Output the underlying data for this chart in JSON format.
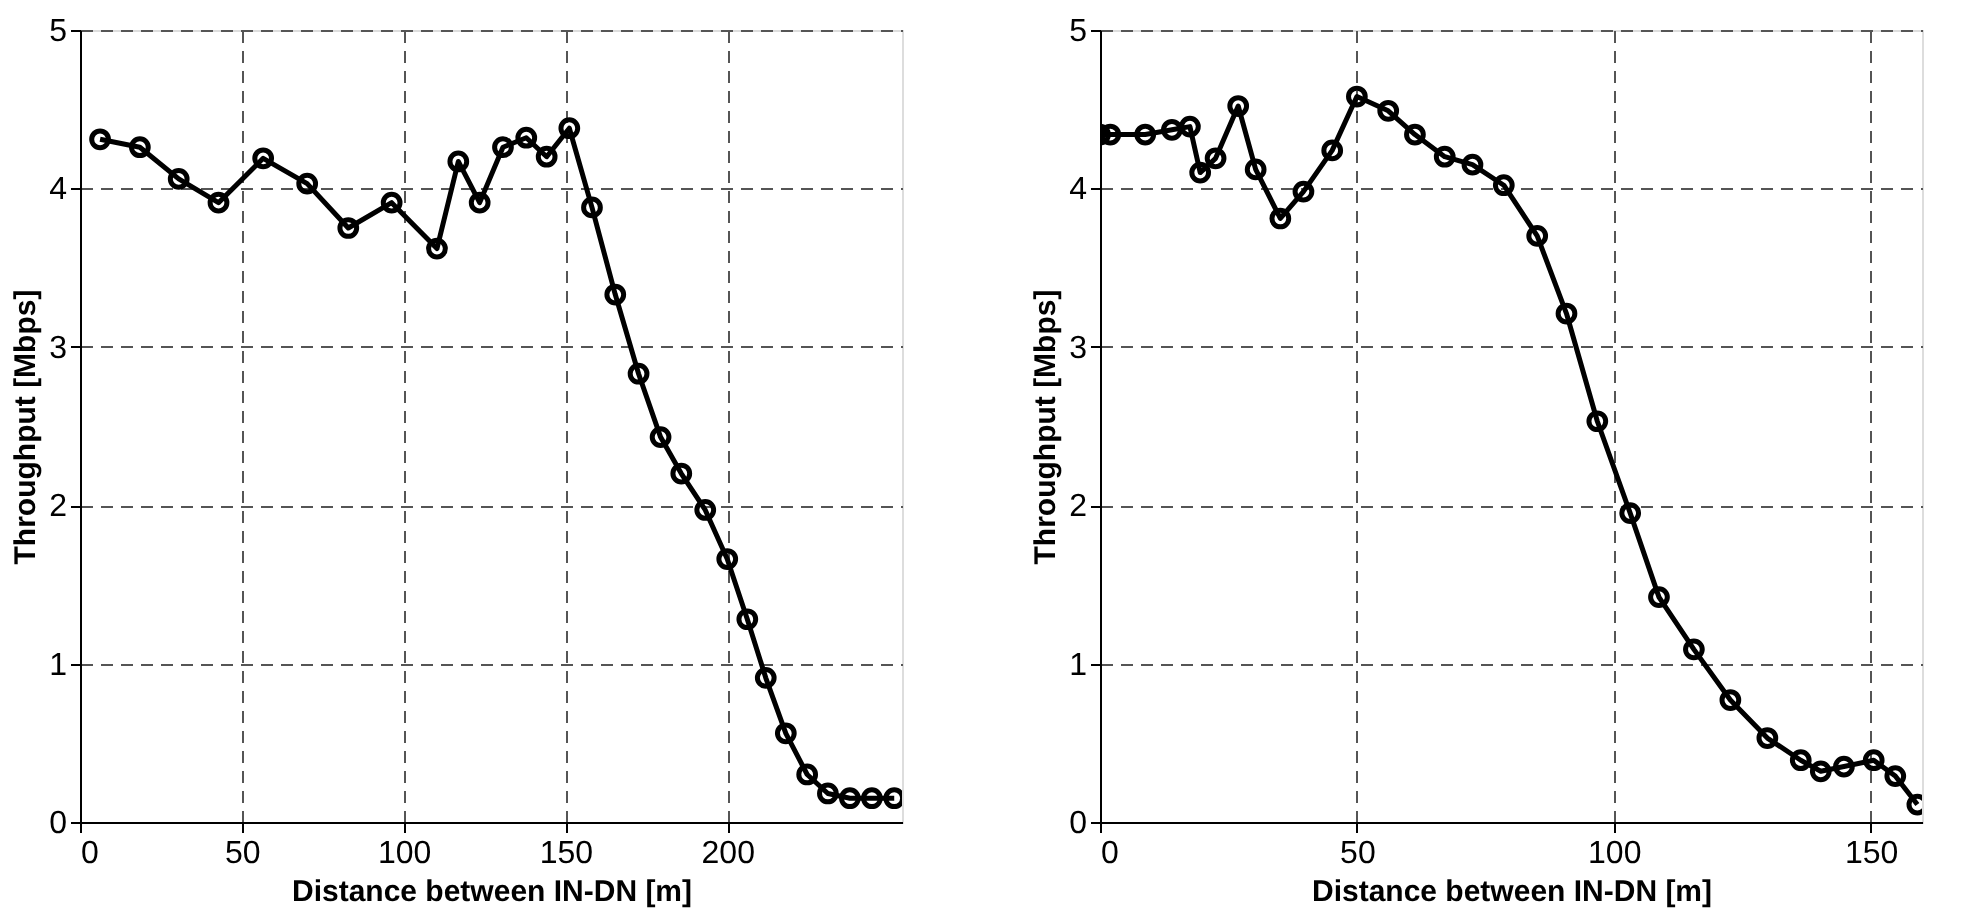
{
  "chart_data": [
    {
      "type": "line",
      "xlabel": "Distance between IN-DN [m]",
      "ylabel": "Throughput [Mbps]",
      "xlim": [
        0,
        254
      ],
      "xticks": [
        0,
        50,
        100,
        150,
        200
      ],
      "ylim": [
        0,
        5
      ],
      "yticks": [
        0,
        1,
        2,
        3,
        4,
        5
      ],
      "grid": true,
      "marker": "circle",
      "line_style": "solid",
      "x": [
        6.2,
        18.5,
        30.5,
        42.8,
        56.6,
        70.2,
        82.9,
        96.3,
        110.3,
        116.9,
        123.5,
        130.7,
        137.9,
        144.2,
        151.2,
        158.2,
        165.4,
        172.6,
        179.4,
        185.8,
        193.2,
        200,
        206.2,
        211.9,
        218.1,
        224.7,
        231.1,
        237.9,
        244.7,
        251.6
      ],
      "series": [
        {
          "color": "#000000",
          "values": [
            4.31,
            4.26,
            4.06,
            3.91,
            4.19,
            4.03,
            3.75,
            3.91,
            3.62,
            4.17,
            3.91,
            4.26,
            4.32,
            4.2,
            4.38,
            3.88,
            3.33,
            2.83,
            2.43,
            2.2,
            1.97,
            1.66,
            1.28,
            0.91,
            0.56,
            0.3,
            0.18,
            0.15,
            0.15,
            0.15
          ]
        }
      ]
    },
    {
      "type": "line",
      "xlabel": "Distance between IN-DN [m]",
      "ylabel": "Throughput [Mbps]",
      "xlim": [
        0,
        160
      ],
      "xticks": [
        0,
        50,
        100,
        150
      ],
      "ylim": [
        0,
        5
      ],
      "yticks": [
        0,
        1,
        2,
        3,
        4,
        5
      ],
      "grid": true,
      "marker": "circle",
      "line_style": "solid",
      "x": [
        0,
        2,
        8.8,
        14,
        17.5,
        19.5,
        22.5,
        26.9,
        30.3,
        35.1,
        39.6,
        45.2,
        50,
        56.1,
        61.3,
        67.1,
        72.5,
        78.6,
        85.1,
        90.8,
        96.8,
        103.2,
        108.8,
        115.6,
        122.7,
        129.9,
        136.4,
        140.3,
        144.8,
        150.6,
        154.8,
        159.1
      ],
      "series": [
        {
          "color": "#000000",
          "values": [
            4.34,
            4.34,
            4.34,
            4.37,
            4.39,
            4.1,
            4.19,
            4.52,
            4.12,
            3.81,
            3.98,
            4.24,
            4.58,
            4.49,
            4.34,
            4.2,
            4.15,
            4.02,
            3.7,
            3.21,
            2.53,
            1.95,
            1.42,
            1.09,
            0.77,
            0.53,
            0.39,
            0.32,
            0.35,
            0.39,
            0.29,
            0.11
          ]
        }
      ]
    }
  ]
}
